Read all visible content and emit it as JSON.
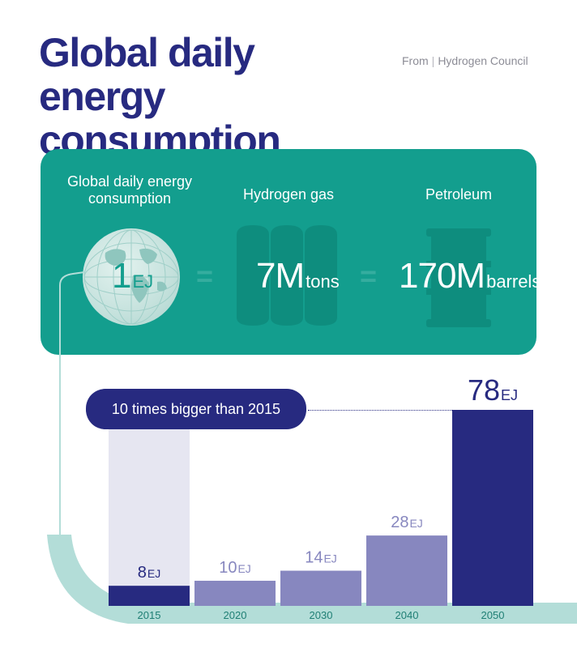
{
  "header": {
    "title": "Global daily energy consumption",
    "source_prefix": "From",
    "source_name": "Hydrogen Council"
  },
  "equivalence": {
    "items": [
      {
        "label": "Global daily energy consumption",
        "value": "1",
        "unit": "EJ"
      },
      {
        "label": "Hydrogen gas",
        "value": "7M",
        "unit": "tons"
      },
      {
        "label": "Petroleum",
        "value": "170M",
        "unit": "barrels"
      }
    ],
    "equals_symbol": "="
  },
  "annotation": {
    "text": "10 times bigger than 2015"
  },
  "colors": {
    "title": "#272a80",
    "panel": "#139e8e",
    "bar_light": "#8787bf",
    "bar_dark": "#272a80",
    "bar_highlight_bg": "#e6e6f1",
    "axis_band": "#b3ddd8"
  },
  "chart_data": {
    "type": "bar",
    "categories": [
      "2015",
      "2020",
      "2030",
      "2040",
      "2050"
    ],
    "values": [
      8,
      10,
      14,
      28,
      78
    ],
    "value_unit": "EJ",
    "data_labels": [
      "8",
      "10",
      "14",
      "28",
      "78"
    ],
    "ylim": [
      0,
      78
    ],
    "title": "",
    "xlabel": "",
    "ylabel": "",
    "grid": false,
    "legend": "none"
  }
}
